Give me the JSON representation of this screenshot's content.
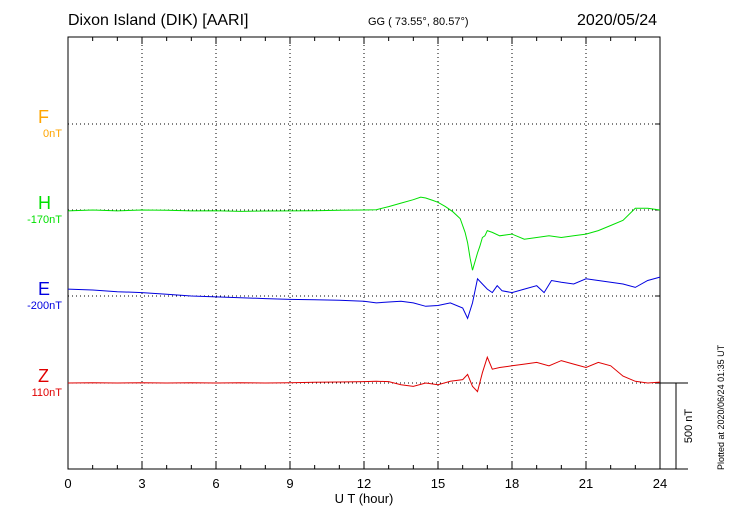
{
  "header": {
    "station": "Dixon Island (DIK)  [AARI]",
    "coords": "GG ( 73.55°,  80.57°)",
    "date": "2020/05/24"
  },
  "credit": "Plotted at 2020/06/24 01:35 UT",
  "chart_data": {
    "type": "line",
    "title": "Dixon Island (DIK)  [AARI]",
    "xlabel": "U T (hour)",
    "xlim": [
      0,
      24
    ],
    "xticks": [
      "0",
      "3",
      "6",
      "9",
      "12",
      "15",
      "18",
      "21",
      "24"
    ],
    "grid": true,
    "scale_bar": "500 nT",
    "colors": {
      "F": "#ffa500",
      "H": "#00e000",
      "E": "#0000e0",
      "Z": "#e00000"
    },
    "series": [
      {
        "name": "F",
        "baseline": "0nT",
        "x": [],
        "y": []
      },
      {
        "name": "H",
        "baseline": "-170nT",
        "x": [
          0,
          1,
          2,
          3,
          4,
          5,
          6,
          7,
          8,
          9,
          10,
          11,
          12,
          12.5,
          13,
          13.5,
          14,
          14.3,
          14.5,
          14.8,
          15,
          15.3,
          15.6,
          15.9,
          16.1,
          16.2,
          16.3,
          16.4,
          16.5,
          16.6,
          16.7,
          16.8,
          16.9,
          17.0,
          17.2,
          17.5,
          18,
          18.5,
          19,
          19.5,
          20,
          20.5,
          21,
          21.5,
          22,
          22.5,
          23,
          23.5,
          24
        ],
        "y": [
          -175,
          -170,
          -175,
          -170,
          -172,
          -175,
          -174,
          -178,
          -176,
          -175,
          -174,
          -172,
          -170,
          -168,
          -150,
          -130,
          -110,
          -95,
          -100,
          -115,
          -125,
          -150,
          -180,
          -220,
          -300,
          -360,
          -450,
          -520,
          -470,
          -420,
          -380,
          -330,
          -320,
          -290,
          -300,
          -320,
          -310,
          -340,
          -330,
          -320,
          -330,
          -320,
          -310,
          -290,
          -260,
          -230,
          -160,
          -160,
          -170
        ]
      },
      {
        "name": "E",
        "baseline": "-200nT",
        "x": [
          0,
          1,
          2,
          3,
          4,
          5,
          6,
          7,
          8,
          9,
          10,
          11,
          12,
          12.5,
          13,
          13.5,
          14,
          14.5,
          15,
          15.5,
          16,
          16.2,
          16.4,
          16.6,
          16.8,
          17.0,
          17.2,
          17.4,
          17.6,
          18,
          18.5,
          19,
          19.3,
          19.6,
          20,
          20.5,
          21,
          21.5,
          22,
          22.5,
          23,
          23.5,
          24
        ],
        "y": [
          -160,
          -165,
          -175,
          -180,
          -190,
          -200,
          -205,
          -210,
          -215,
          -220,
          -222,
          -225,
          -230,
          -240,
          -235,
          -230,
          -240,
          -260,
          -255,
          -240,
          -270,
          -330,
          -240,
          -100,
          -130,
          -160,
          -180,
          -140,
          -170,
          -180,
          -160,
          -140,
          -180,
          -110,
          -120,
          -130,
          -100,
          -110,
          -120,
          -130,
          -150,
          -110,
          -90
        ]
      },
      {
        "name": "Z",
        "baseline": "110nT",
        "x": [
          0,
          1,
          2,
          3,
          4,
          5,
          6,
          7,
          8,
          9,
          10,
          11,
          12,
          12.5,
          13,
          13.5,
          14,
          14.5,
          15,
          15.5,
          16,
          16.2,
          16.4,
          16.6,
          16.8,
          17.0,
          17.2,
          17.5,
          18,
          18.5,
          19,
          19.5,
          20,
          20.5,
          21,
          21.5,
          22,
          22.5,
          23,
          23.5,
          24
        ],
        "y": [
          110,
          112,
          110,
          112,
          110,
          112,
          110,
          112,
          110,
          112,
          114,
          116,
          118,
          120,
          118,
          100,
          90,
          110,
          100,
          120,
          130,
          160,
          90,
          60,
          170,
          260,
          190,
          200,
          210,
          220,
          230,
          210,
          240,
          220,
          200,
          230,
          210,
          150,
          120,
          110,
          115
        ]
      }
    ]
  }
}
